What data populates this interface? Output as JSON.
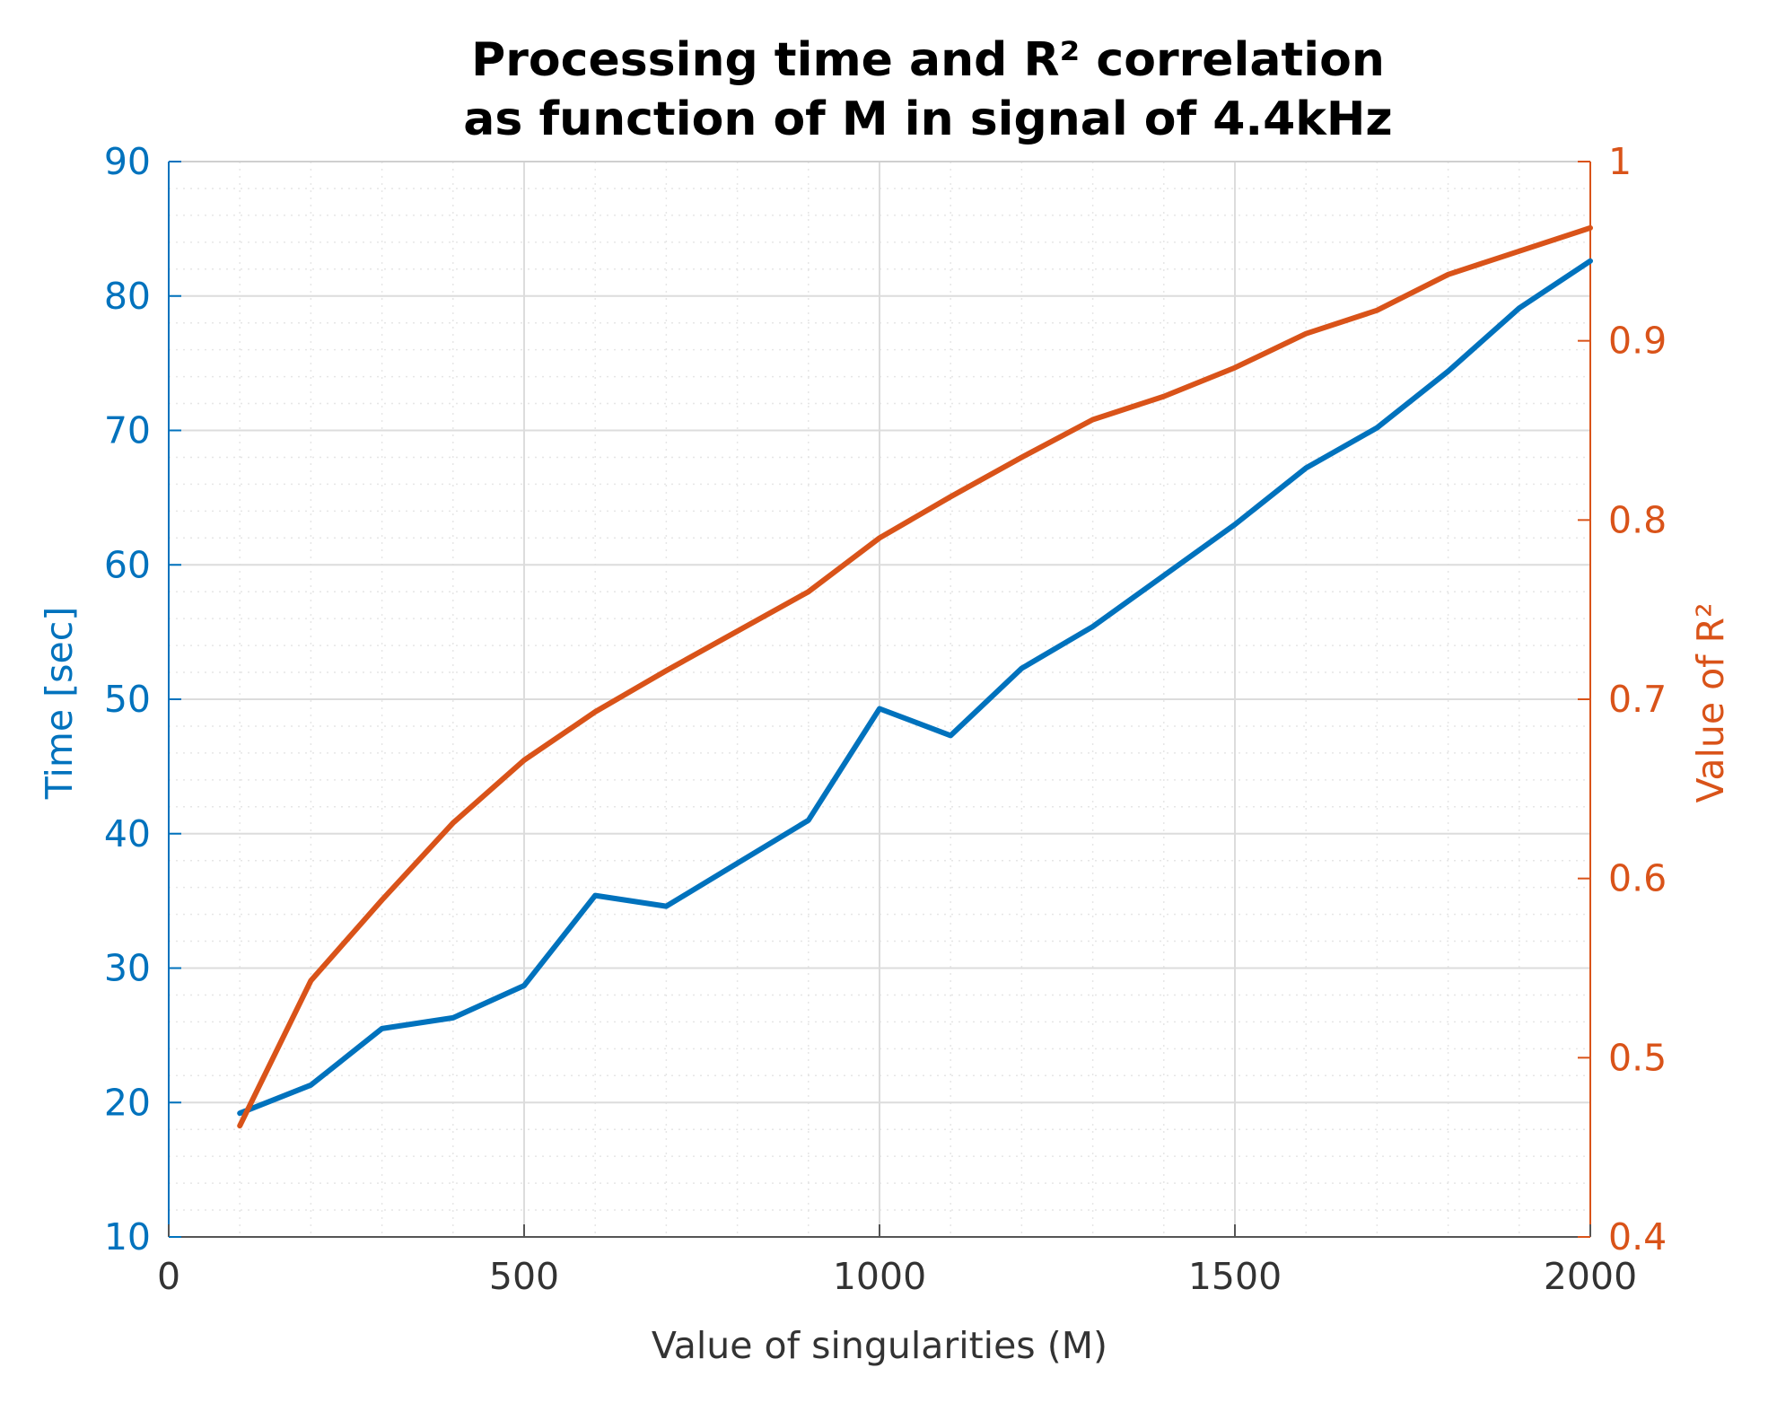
{
  "chart_data": {
    "type": "line",
    "title": [
      "Processing time and R² correlation",
      "as function of M in signal of 4.4kHz"
    ],
    "xlabel": "Value of singularities (M)",
    "ylabel_left": "Time [sec]",
    "ylabel_right": "Value of R²",
    "xlim": [
      0,
      2000
    ],
    "ylim_left": [
      10,
      90
    ],
    "ylim_right": [
      0.4,
      1.0
    ],
    "x_ticks": [
      "0",
      "500",
      "1000",
      "1500",
      "2000"
    ],
    "y_left_ticks": [
      "10",
      "20",
      "30",
      "40",
      "50",
      "60",
      "70",
      "80",
      "90"
    ],
    "y_right_ticks": [
      "0.4",
      "0.5",
      "0.6",
      "0.7",
      "0.8",
      "0.9",
      "1"
    ],
    "grid": true,
    "colors": {
      "time": "#0072BD",
      "r2": "#D95319",
      "grid_major": "#dcdcdc",
      "grid_minor": "#e6e6e6",
      "axis": "#555555"
    },
    "x": [
      100,
      200,
      300,
      400,
      500,
      600,
      700,
      800,
      900,
      1000,
      1100,
      1200,
      1300,
      1400,
      1500,
      1600,
      1700,
      1800,
      1900,
      2000
    ],
    "series": [
      {
        "name": "Time",
        "axis": "left",
        "values": [
          19.2,
          21.3,
          25.5,
          26.3,
          28.7,
          35.4,
          34.6,
          37.8,
          41.0,
          49.3,
          47.3,
          52.3,
          55.4,
          59.2,
          63.0,
          67.2,
          70.2,
          74.4,
          79.1,
          82.6
        ]
      },
      {
        "name": "R²",
        "axis": "right",
        "values": [
          0.462,
          0.543,
          0.588,
          0.631,
          0.666,
          0.693,
          0.716,
          0.738,
          0.76,
          0.79,
          0.813,
          0.835,
          0.856,
          0.869,
          0.885,
          0.904,
          0.917,
          0.937,
          0.95,
          0.963
        ]
      }
    ]
  }
}
